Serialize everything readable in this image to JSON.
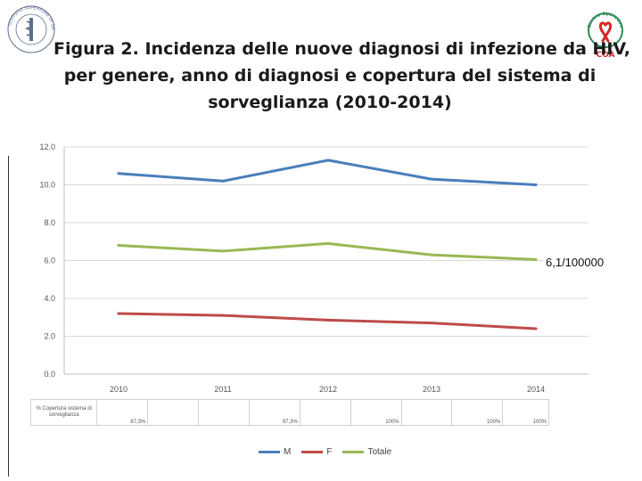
{
  "title_lines": [
    "Figura 2. Incidenza delle nuove diagnosi di infezione da HIV,",
    "per genere, anno di diagnosi e copertura del sistema di",
    "sorveglianza (2010-2014)"
  ],
  "logos": {
    "left_text": "ISTITUTO SUPERIORE DI SANITÀ",
    "right_text": "Centro Operativo AIDS",
    "right_abbr": "COA"
  },
  "annotation": "6,1/100000",
  "chart_data": {
    "type": "line",
    "title": "Incidenza delle nuove diagnosi di infezione da HIV (2010-2014)",
    "xlabel": "",
    "ylabel": "",
    "x": [
      "2010",
      "2011",
      "2012",
      "2013",
      "2014"
    ],
    "ylim": [
      0,
      12
    ],
    "yticks": [
      "0.0",
      "2.0",
      "4.0",
      "6.0",
      "8.0",
      "10.0",
      "12.0"
    ],
    "grid": true,
    "series": [
      {
        "name": "M",
        "color": "#4a7ebb",
        "values": [
          10.6,
          10.2,
          11.3,
          10.3,
          10.0
        ]
      },
      {
        "name": "F",
        "color": "#be4b48",
        "values": [
          3.2,
          3.1,
          2.85,
          2.7,
          2.4
        ]
      },
      {
        "name": "Totale",
        "color": "#98b954",
        "values": [
          6.8,
          6.5,
          6.9,
          6.3,
          6.05
        ]
      }
    ]
  },
  "coverage": {
    "label": "% Copertura sistema di sorveglianza",
    "values": [
      "87,3%",
      "97,3%",
      "100%",
      "100%",
      "100%"
    ]
  }
}
